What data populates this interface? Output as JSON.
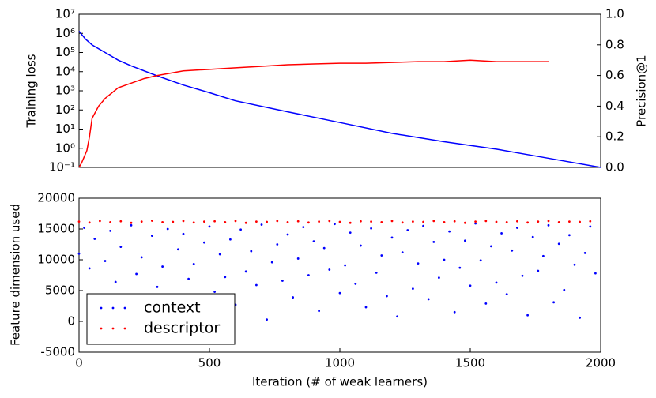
{
  "chart_data": [
    {
      "type": "line",
      "ylabel": "Training loss",
      "y2label": "Precision@1",
      "yscale": "log",
      "xlim": [
        0,
        2000
      ],
      "ylim": [
        0.1,
        10000000
      ],
      "yticks": [
        {
          "value": 0.1,
          "label": "10⁻¹"
        },
        {
          "value": 1,
          "label": "10⁰"
        },
        {
          "value": 10,
          "label": "10¹"
        },
        {
          "value": 100,
          "label": "10²"
        },
        {
          "value": 1000,
          "label": "10³"
        },
        {
          "value": 10000,
          "label": "10⁴"
        },
        {
          "value": 100000,
          "label": "10⁵"
        },
        {
          "value": 1000000,
          "label": "10⁶"
        },
        {
          "value": 10000000,
          "label": "10⁷"
        }
      ],
      "y2lim": [
        0,
        1
      ],
      "y2ticks": [
        {
          "value": 0,
          "label": "0.0"
        },
        {
          "value": 0.2,
          "label": "0.2"
        },
        {
          "value": 0.4,
          "label": "0.4"
        },
        {
          "value": 0.6,
          "label": "0.6"
        },
        {
          "value": 0.8,
          "label": "0.8"
        },
        {
          "value": 1,
          "label": "1.0"
        }
      ],
      "series": [
        {
          "color": "#0000ff",
          "x": [
            0,
            25,
            50,
            100,
            150,
            200,
            300,
            400,
            500,
            600,
            800,
            1000,
            1200,
            1400,
            1600,
            1800,
            2000
          ],
          "values": [
            1300000,
            500000,
            250000,
            100000,
            40000,
            20000,
            6000,
            2000,
            800,
            300,
            80,
            22,
            6,
            2.2,
            0.9,
            0.3,
            0.1
          ]
        },
        {
          "color": "#ff0000",
          "axis": "y2",
          "x": [
            0,
            10,
            20,
            30,
            40,
            50,
            75,
            100,
            150,
            200,
            250,
            300,
            400,
            500,
            600,
            700,
            800,
            900,
            1000,
            1100,
            1200,
            1300,
            1400,
            1500,
            1600,
            1700,
            1800
          ],
          "values": [
            0.0,
            0.03,
            0.07,
            0.11,
            0.2,
            0.32,
            0.4,
            0.45,
            0.52,
            0.55,
            0.58,
            0.6,
            0.63,
            0.64,
            0.65,
            0.66,
            0.67,
            0.675,
            0.68,
            0.68,
            0.685,
            0.69,
            0.69,
            0.7,
            0.69,
            0.69,
            0.69
          ]
        }
      ]
    },
    {
      "type": "scatter",
      "xlabel": "Iteration (# of weak learners)",
      "ylabel": "Feature dimension used",
      "xlim": [
        0,
        2000
      ],
      "xticks": [
        0,
        500,
        1000,
        1500,
        2000
      ],
      "ylim": [
        -5000,
        20000
      ],
      "yticks": [
        -5000,
        0,
        5000,
        10000,
        15000,
        20000
      ],
      "legend": "lower left",
      "series": [
        {
          "name": "context",
          "color": "#0000ff",
          "x": [
            0,
            20,
            40,
            60,
            80,
            100,
            120,
            140,
            160,
            180,
            200,
            220,
            240,
            260,
            280,
            300,
            320,
            340,
            360,
            380,
            400,
            420,
            440,
            460,
            480,
            500,
            520,
            540,
            560,
            580,
            600,
            620,
            640,
            660,
            680,
            700,
            720,
            740,
            760,
            780,
            800,
            820,
            840,
            860,
            880,
            900,
            920,
            940,
            960,
            980,
            1000,
            1020,
            1040,
            1060,
            1080,
            1100,
            1120,
            1140,
            1160,
            1180,
            1200,
            1220,
            1240,
            1260,
            1280,
            1300,
            1320,
            1340,
            1360,
            1380,
            1400,
            1420,
            1440,
            1460,
            1480,
            1500,
            1520,
            1540,
            1560,
            1580,
            1600,
            1620,
            1640,
            1660,
            1680,
            1700,
            1720,
            1740,
            1760,
            1780,
            1800,
            1820,
            1840,
            1860,
            1880,
            1900,
            1920,
            1940,
            1960,
            1980
          ],
          "values": [
            11000,
            15200,
            8600,
            13400,
            2100,
            9800,
            14700,
            6400,
            12100,
            4300,
            15600,
            7700,
            10400,
            1200,
            13900,
            5600,
            8900,
            15000,
            3300,
            11700,
            14200,
            6900,
            9300,
            500,
            12800,
            15400,
            4800,
            10900,
            7200,
            13300,
            2700,
            14900,
            8100,
            11400,
            5900,
            15700,
            300,
            9600,
            12500,
            6600,
            14100,
            3900,
            10200,
            15300,
            7500,
            13000,
            1700,
            11900,
            8400,
            15800,
            4600,
            9100,
            14400,
            6100,
            12300,
            2300,
            15100,
            7900,
            10700,
            4100,
            13600,
            800,
            11200,
            14800,
            5300,
            9400,
            15500,
            3600,
            12900,
            7100,
            10000,
            14600,
            1500,
            8700,
            13100,
            5800,
            15900,
            9900,
            2900,
            12200,
            6300,
            14300,
            4400,
            11500,
            15200,
            7400,
            1000,
            13700,
            8200,
            10600,
            15600,
            3100,
            12600,
            5100,
            14000,
            9200,
            600,
            11100,
            15400,
            7800
          ]
        },
        {
          "name": "descriptor",
          "color": "#ff0000",
          "x": [
            0,
            40,
            80,
            120,
            160,
            200,
            240,
            280,
            320,
            360,
            400,
            440,
            480,
            520,
            560,
            600,
            640,
            680,
            720,
            760,
            800,
            840,
            880,
            920,
            960,
            1000,
            1040,
            1080,
            1120,
            1160,
            1200,
            1240,
            1280,
            1320,
            1360,
            1400,
            1440,
            1480,
            1520,
            1560,
            1600,
            1640,
            1680,
            1720,
            1760,
            1800,
            1840,
            1880,
            1920,
            1960
          ],
          "values": [
            16200,
            16050,
            16300,
            16100,
            16250,
            16000,
            16200,
            16350,
            16100,
            16150,
            16300,
            16050,
            16200,
            16250,
            16100,
            16300,
            16000,
            16200,
            16150,
            16300,
            16100,
            16250,
            16050,
            16200,
            16300,
            16150,
            16000,
            16250,
            16200,
            16100,
            16300,
            16050,
            16200,
            16150,
            16300,
            16100,
            16250,
            16000,
            16200,
            16300,
            16150,
            16100,
            16250,
            16050,
            16200,
            16300,
            16100,
            16200,
            16150,
            16250
          ]
        }
      ]
    }
  ]
}
